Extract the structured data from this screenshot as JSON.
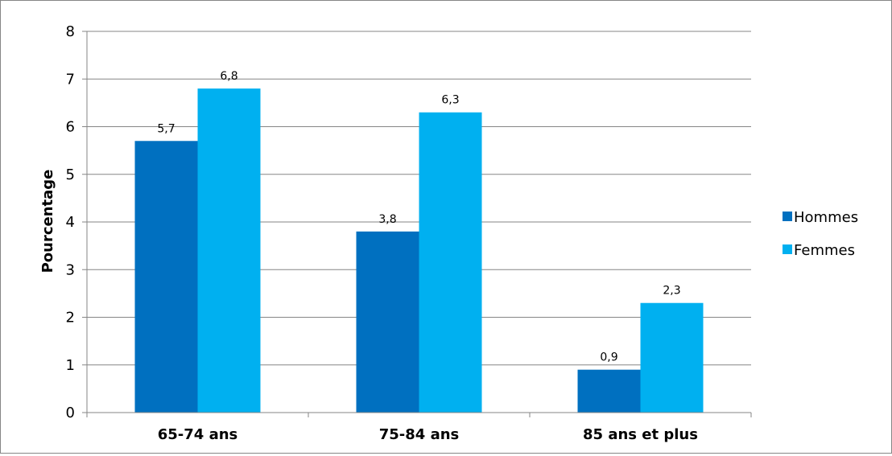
{
  "chart_data": {
    "type": "bar",
    "title": "",
    "xlabel": "",
    "ylabel": "Pourcentage",
    "ylim": [
      0,
      8
    ],
    "yticks": [
      0,
      1,
      2,
      3,
      4,
      5,
      6,
      7,
      8
    ],
    "grid": true,
    "legend_position": "right",
    "categories": [
      "65-74 ans",
      "75-84 ans",
      "85 ans et plus"
    ],
    "series": [
      {
        "name": "Hommes",
        "color": "#0070C0",
        "values": [
          5.7,
          3.8,
          0.9
        ],
        "labels": [
          "5,7",
          "3,8",
          "0,9"
        ]
      },
      {
        "name": "Femmes",
        "color": "#00B0F0",
        "values": [
          6.8,
          6.3,
          2.3
        ],
        "labels": [
          "6,8",
          "6,3",
          "2,3"
        ]
      }
    ]
  }
}
